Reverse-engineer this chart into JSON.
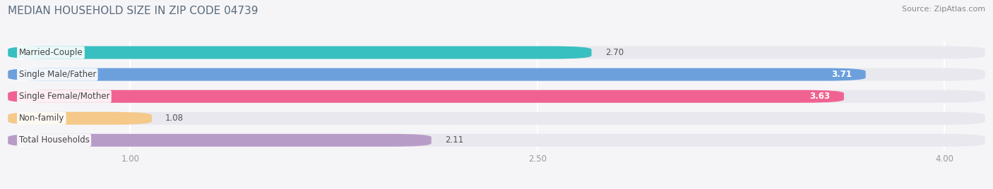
{
  "title": "MEDIAN HOUSEHOLD SIZE IN ZIP CODE 04739",
  "source": "Source: ZipAtlas.com",
  "categories": [
    "Married-Couple",
    "Single Male/Father",
    "Single Female/Mother",
    "Non-family",
    "Total Households"
  ],
  "values": [
    2.7,
    3.71,
    3.63,
    1.08,
    2.11
  ],
  "bar_colors": [
    "#38bfc0",
    "#6ca0dc",
    "#f06292",
    "#f5c98a",
    "#b89cc8"
  ],
  "value_colors": [
    "#555555",
    "#ffffff",
    "#ffffff",
    "#555555",
    "#555555"
  ],
  "xlim_min": 0.55,
  "xlim_max": 4.15,
  "xticks": [
    1.0,
    2.5,
    4.0
  ],
  "xtick_labels": [
    "1.00",
    "2.50",
    "4.00"
  ],
  "background_color": "#f5f5f8",
  "bar_bg_color": "#e8e8ee",
  "bar_height": 0.58,
  "label_fontsize": 8.5,
  "value_fontsize": 8.5,
  "title_fontsize": 11,
  "title_color": "#5a6a7a",
  "source_color": "#888888",
  "label_color": "#444444",
  "tick_color": "#999999"
}
